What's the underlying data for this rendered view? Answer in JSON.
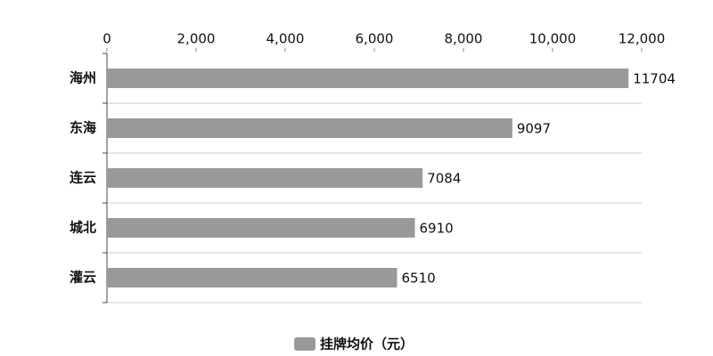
{
  "chart_data": {
    "type": "bar",
    "orientation": "horizontal",
    "categories": [
      "海州",
      "东海",
      "连云",
      "城北",
      "灌云"
    ],
    "series": [
      {
        "name": "挂牌均价（元）",
        "color": "#999999",
        "values": [
          11704,
          9097,
          7084,
          6910,
          6510
        ]
      }
    ],
    "xlim": [
      0,
      12000
    ],
    "xticks": [
      0,
      {
        "value": 2000,
        "label": "2,000"
      },
      {
        "value": 4000,
        "label": "4,000"
      },
      {
        "value": 6000,
        "label": "6,000"
      },
      {
        "value": 8000,
        "label": "8,000"
      },
      {
        "value": 10000,
        "label": "10,000"
      },
      {
        "value": 12000,
        "label": "12,000"
      }
    ],
    "legend": "bottom"
  }
}
